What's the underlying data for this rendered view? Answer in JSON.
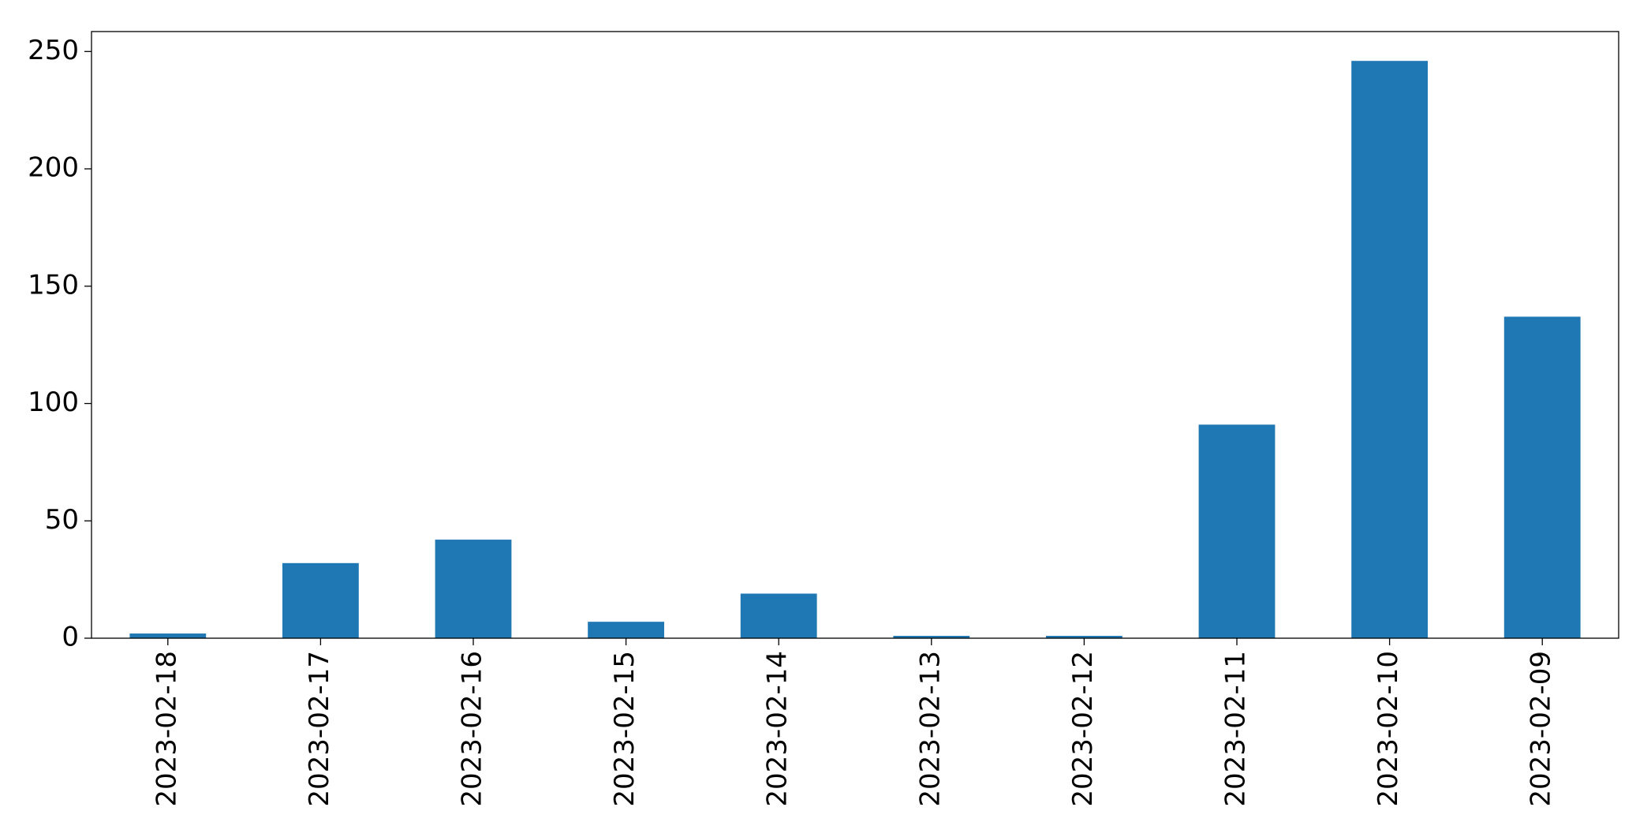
{
  "chart_data": {
    "type": "bar",
    "categories": [
      "2023-02-18",
      "2023-02-17",
      "2023-02-16",
      "2023-02-15",
      "2023-02-14",
      "2023-02-13",
      "2023-02-12",
      "2023-02-11",
      "2023-02-10",
      "2023-02-09"
    ],
    "values": [
      2,
      32,
      42,
      7,
      19,
      1,
      1,
      91,
      246,
      137
    ],
    "color": "#1f77b4",
    "ylim": [
      0,
      258.5
    ],
    "yticks": [
      0,
      50,
      100,
      150,
      200,
      250
    ],
    "grid": false
  }
}
